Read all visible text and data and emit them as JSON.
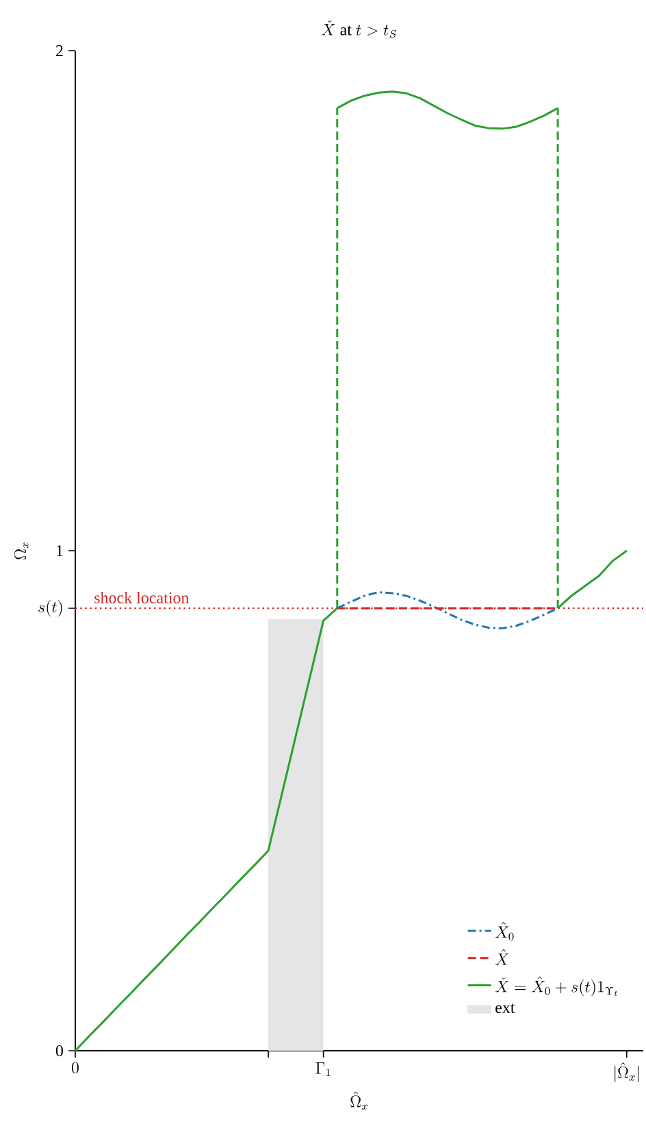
{
  "chart_data": {
    "type": "line",
    "title": "\\check{X} \\mbox{ at } t > t_S",
    "xlabel": "\\hat{\\Omega}_x",
    "ylabel": "\\Omega_x",
    "categories": [
      "0",
      null,
      null,
      null,
      null,
      null,
      null,
      null,
      null,
      null,
      null,
      null,
      null,
      null,
      null,
      null,
      null,
      null,
      "\\Gamma_1",
      null,
      null,
      null,
      null,
      null,
      null,
      null,
      null,
      null,
      null,
      null,
      null,
      null,
      null,
      null,
      null,
      null,
      null,
      null,
      null,
      null,
      "|\\hat{\\Omega}_x|"
    ],
    "ylim": [
      0,
      2
    ],
    "yticks": [
      0,
      {
        "value": 0.885,
        "label": "s(t)"
      },
      1,
      2
    ],
    "series": [
      {
        "name": "\\hat{X}_0",
        "color": "#1f77b4",
        "line_style": "dashdot",
        "values": [
          null,
          null,
          null,
          null,
          null,
          null,
          null,
          null,
          null,
          null,
          null,
          null,
          null,
          null,
          null,
          null,
          null,
          null,
          null,
          0.885,
          0.898,
          0.91,
          0.917,
          0.915,
          0.91,
          0.9,
          0.888,
          0.875,
          0.862,
          0.852,
          0.846,
          0.845,
          0.85,
          0.86,
          0.872,
          0.885,
          null,
          null,
          null,
          null,
          null
        ]
      },
      {
        "name": "\\hat{X}",
        "color": "#d62728",
        "line_style": "dashed",
        "values": [
          null,
          null,
          null,
          null,
          null,
          null,
          null,
          null,
          null,
          null,
          null,
          null,
          null,
          null,
          null,
          null,
          null,
          null,
          null,
          0.885,
          0.885,
          0.885,
          0.885,
          0.885,
          0.885,
          0.885,
          0.885,
          0.885,
          0.885,
          0.885,
          0.885,
          0.885,
          0.885,
          0.885,
          0.885,
          0.885,
          null,
          null,
          null,
          null,
          null
        ]
      },
      {
        "name": "\\check{X} = \\hat{X}_0 + s(t)1_{\\Upsilon_t}",
        "color": "#2ca02c",
        "line_style": "solid",
        "values": [
          0,
          0.029,
          0.057,
          0.086,
          0.114,
          0.143,
          0.171,
          0.2,
          0.229,
          0.257,
          0.286,
          0.314,
          0.343,
          0.371,
          0.4,
          0.515,
          0.63,
          0.745,
          0.86,
          0.885,
          null,
          null,
          null,
          null,
          null,
          null,
          null,
          null,
          null,
          null,
          null,
          null,
          null,
          null,
          null,
          0.885,
          0.91,
          0.93,
          0.95,
          0.98,
          1.0
        ]
      },
      {
        "color": "#2ca02c",
        "line_style": "solid",
        "values": [
          null,
          null,
          null,
          null,
          null,
          null,
          null,
          null,
          null,
          null,
          null,
          null,
          null,
          null,
          null,
          null,
          null,
          null,
          null,
          1.885,
          1.9,
          1.91,
          1.916,
          1.918,
          1.915,
          1.905,
          1.89,
          1.875,
          1.862,
          1.85,
          1.845,
          1.844,
          1.848,
          1.858,
          1.87,
          1.885,
          null,
          null,
          null,
          null,
          null
        ],
        "errors": [
          null,
          null,
          null,
          null,
          null,
          null,
          null,
          null,
          null,
          null,
          null,
          null,
          null,
          null,
          null,
          null,
          null,
          null,
          null,
          [
            0.885,
            1.885
          ],
          null,
          null,
          null,
          null,
          null,
          null,
          null,
          null,
          null,
          null,
          null,
          null,
          null,
          null,
          null,
          [
            0.885,
            1.885
          ],
          null,
          null,
          null,
          null,
          null
        ]
      },
      {
        "name": "ext",
        "type": "area",
        "color": "#e5e5e5",
        "values": [
          null,
          null,
          null,
          null,
          null,
          null,
          null,
          null,
          null,
          null,
          null,
          null,
          null,
          null,
          0.863,
          0.863,
          0.863,
          0.863,
          0.863,
          null,
          null,
          null,
          null,
          null,
          null,
          null,
          null,
          null,
          null,
          null,
          null,
          null,
          null,
          null,
          null,
          null,
          null,
          null,
          null,
          null,
          null
        ]
      }
    ],
    "ref_lines": [
      {
        "axis": "y",
        "value": 0.885,
        "label": "shock location",
        "color": "#d62728",
        "line_style": "dotted"
      }
    ],
    "legend": "bottom right",
    "marker": "none",
    "grid": false
  }
}
